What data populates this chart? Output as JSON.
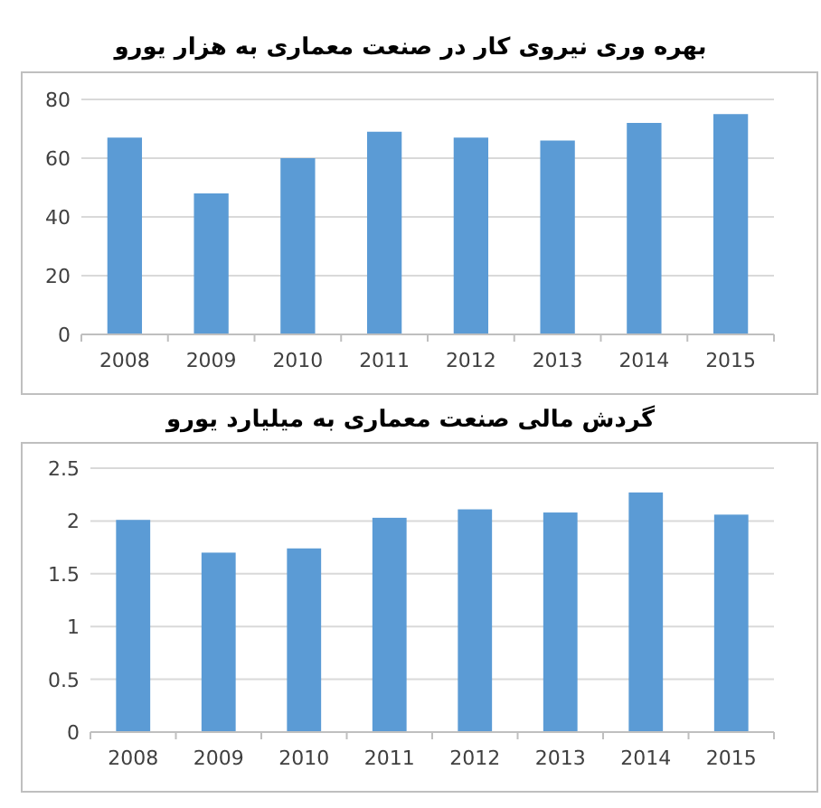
{
  "chart_data": [
    {
      "type": "bar",
      "title": "بهره وری نیروی کار در صنعت معماری به هزار یورو",
      "categories": [
        "2008",
        "2009",
        "2010",
        "2011",
        "2012",
        "2013",
        "2014",
        "2015"
      ],
      "values": [
        67,
        48,
        60,
        69,
        67,
        66,
        72,
        75
      ],
      "color": "#5b9bd5",
      "ylim": [
        0,
        80
      ],
      "yticks": [
        0,
        20,
        40,
        60,
        80
      ],
      "grid": "y"
    },
    {
      "type": "bar",
      "title": "گردش مالی صنعت معماری به میلیارد یورو",
      "categories": [
        "2008",
        "2009",
        "2010",
        "2011",
        "2012",
        "2013",
        "2014",
        "2015"
      ],
      "values": [
        2.01,
        1.7,
        1.74,
        2.03,
        2.11,
        2.08,
        2.27,
        2.06
      ],
      "color": "#5b9bd5",
      "ylim": [
        0,
        2.5
      ],
      "yticks": [
        0,
        0.5,
        1,
        1.5,
        2,
        2.5
      ],
      "grid": "y"
    }
  ]
}
